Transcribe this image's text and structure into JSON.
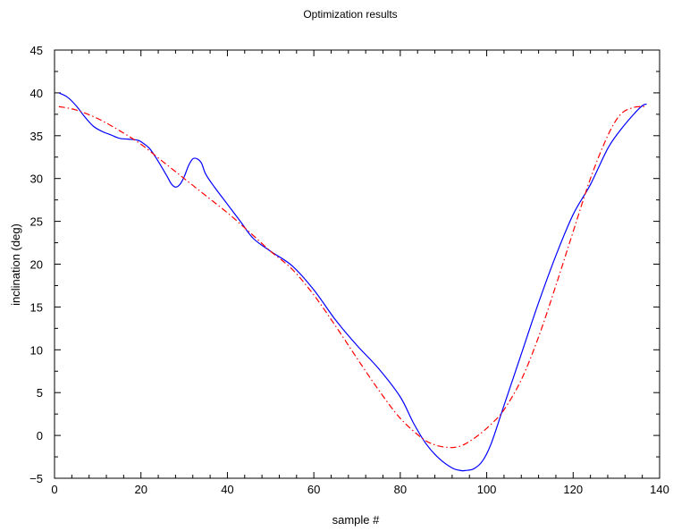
{
  "chart_data": {
    "type": "line",
    "title": "Optimization results",
    "xlabel": "sample #",
    "ylabel": "inclination (deg)",
    "xlim": [
      0,
      140
    ],
    "ylim": [
      -5,
      45
    ],
    "x_ticks": [
      0,
      20,
      40,
      60,
      80,
      100,
      120,
      140
    ],
    "x_tick_labels": [
      "0",
      "20",
      "40",
      "60",
      "80",
      "100",
      "120",
      "140"
    ],
    "y_ticks": [
      -5,
      0,
      5,
      10,
      15,
      20,
      25,
      30,
      35,
      40,
      45
    ],
    "y_tick_labels": [
      "−5",
      "0",
      "5",
      "10",
      "15",
      "20",
      "25",
      "30",
      "35",
      "40",
      "45"
    ],
    "grid": false,
    "legend": "none",
    "series": [
      {
        "color": "#0000ff",
        "style": "solid",
        "x": [
          1,
          3,
          5,
          7,
          9,
          11,
          13,
          15,
          17,
          19,
          20,
          22,
          24,
          26,
          27,
          28,
          29,
          30,
          31,
          32,
          33,
          34,
          35,
          37,
          40,
          43,
          46,
          50,
          55,
          60,
          65,
          70,
          75,
          80,
          83,
          86,
          89,
          92,
          94,
          95,
          97,
          99,
          101,
          104,
          108,
          112,
          116,
          120,
          124,
          128,
          131,
          134,
          136,
          137
        ],
        "y": [
          40.0,
          39.5,
          38.5,
          37.2,
          36.1,
          35.5,
          35.1,
          34.7,
          34.6,
          34.5,
          34.3,
          33.5,
          32.0,
          30.3,
          29.4,
          29.0,
          29.3,
          30.2,
          31.5,
          32.3,
          32.3,
          31.8,
          30.5,
          29.0,
          27.0,
          25.0,
          23.0,
          21.5,
          19.8,
          17.0,
          13.5,
          10.5,
          7.8,
          4.5,
          1.5,
          -1.0,
          -2.7,
          -3.8,
          -4.1,
          -4.1,
          -3.9,
          -3.0,
          -1.0,
          3.5,
          9.5,
          15.5,
          21.0,
          25.8,
          29.3,
          33.5,
          35.7,
          37.5,
          38.5,
          38.7
        ]
      },
      {
        "color": "#ff0000",
        "style": "dash-dot",
        "x": [
          1,
          5,
          10,
          15,
          20,
          25,
          30,
          35,
          40,
          45,
          50,
          55,
          60,
          65,
          70,
          75,
          80,
          85,
          88,
          91,
          93,
          95,
          98,
          101,
          104,
          108,
          112,
          116,
          120,
          124,
          128,
          131,
          134,
          136,
          137
        ],
        "y": [
          38.4,
          38.0,
          37.0,
          35.6,
          34.0,
          32.0,
          30.0,
          28.0,
          26.0,
          23.8,
          21.5,
          19.4,
          16.4,
          12.8,
          9.0,
          5.3,
          2.0,
          -0.3,
          -1.1,
          -1.4,
          -1.35,
          -1.0,
          0.0,
          1.3,
          3.0,
          6.5,
          11.5,
          17.5,
          23.8,
          30.0,
          35.0,
          37.5,
          38.3,
          38.4,
          38.4
        ]
      }
    ]
  }
}
